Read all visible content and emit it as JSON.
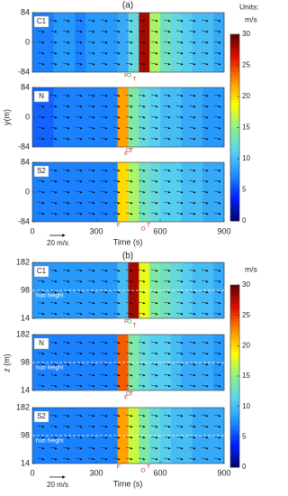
{
  "chart_data": [
    {
      "type": "heatmap",
      "title": "(a)",
      "xlabel": "Time (s)",
      "ylabel": "y(m)",
      "xlim": [
        0,
        900
      ],
      "xticks": [
        0,
        300,
        600,
        900
      ],
      "ylim": [
        -84,
        84
      ],
      "yticks": [
        84,
        0,
        -84
      ],
      "scale_label": "20 m/s",
      "colorbar": {
        "title": "Units:",
        "unit": "m/s",
        "lim": [
          0,
          30
        ],
        "ticks": [
          0,
          5,
          10,
          15,
          20,
          25,
          30
        ]
      },
      "colormap": [
        "#00006a",
        "#0020ff",
        "#1e90ff",
        "#5ad2f0",
        "#8cf08c",
        "#ffff00",
        "#ff9000",
        "#e01000",
        "#600000"
      ],
      "subplots": [
        {
          "name": "C1",
          "bins": [
            0,
            50,
            100,
            150,
            200,
            250,
            300,
            350,
            400,
            450,
            500,
            550,
            600,
            650,
            700,
            750,
            800,
            850,
            900
          ],
          "values": [
            7,
            7,
            8,
            8,
            7,
            8,
            8,
            8,
            9,
            12,
            28,
            16,
            13,
            12,
            11,
            10,
            10,
            9
          ],
          "annotations": [
            {
              "text": "O",
              "x": 455,
              "color": "#2a9d2a"
            },
            {
              "text": "T",
              "x": 480,
              "color": "#c03030"
            },
            {
              "text": "F",
              "x": 440,
              "color": "#c03030"
            }
          ]
        },
        {
          "name": "N",
          "bins": [
            0,
            50,
            100,
            150,
            200,
            250,
            300,
            350,
            400,
            450,
            500,
            550,
            600,
            650,
            700,
            750,
            800,
            850,
            900
          ],
          "values": [
            6,
            6,
            7,
            7,
            7,
            7,
            7,
            7,
            22,
            14,
            12,
            11,
            10,
            10,
            9,
            9,
            8,
            8
          ],
          "annotations": [
            {
              "text": "O",
              "x": 450,
              "color": "#c03030"
            },
            {
              "text": "F",
              "x": 440,
              "color": "#c03030"
            },
            {
              "text": "T",
              "x": 465,
              "color": "#c03030"
            }
          ]
        },
        {
          "name": "S2",
          "bins": [
            0,
            50,
            100,
            150,
            200,
            250,
            300,
            350,
            400,
            450,
            500,
            550,
            600,
            650,
            700,
            750,
            800,
            850,
            900
          ],
          "values": [
            7,
            7,
            7,
            7,
            7,
            7,
            7,
            7,
            20,
            16,
            13,
            12,
            11,
            11,
            10,
            10,
            9,
            9
          ],
          "annotations": [
            {
              "text": "F",
              "x": 405,
              "color": "#c03030"
            },
            {
              "text": "O",
              "x": 520,
              "color": "#c03030"
            },
            {
              "text": "T",
              "x": 545,
              "color": "#c03030"
            }
          ]
        }
      ]
    },
    {
      "type": "heatmap",
      "title": "(b)",
      "xlabel": "Time (s)",
      "ylabel": "z (m)",
      "xlim": [
        0,
        900
      ],
      "xticks": [
        0,
        300,
        600,
        900
      ],
      "ylim": [
        14,
        182
      ],
      "yticks": [
        182,
        98,
        14
      ],
      "scale_label": "20 m/s",
      "hub_height": 98,
      "hub_label": "hub height",
      "colorbar": {
        "unit": "m/s",
        "lim": [
          0,
          30
        ],
        "ticks": [
          0,
          5,
          10,
          15,
          20,
          25,
          30
        ]
      },
      "colormap": [
        "#00006a",
        "#0020ff",
        "#1e90ff",
        "#5ad2f0",
        "#8cf08c",
        "#ffff00",
        "#ff9000",
        "#e01000",
        "#600000"
      ],
      "subplots": [
        {
          "name": "C1",
          "bins": [
            0,
            50,
            100,
            150,
            200,
            250,
            300,
            350,
            400,
            450,
            500,
            550,
            600,
            650,
            700,
            750,
            800,
            850,
            900
          ],
          "values": [
            8,
            8,
            8,
            8,
            8,
            8,
            8,
            8,
            10,
            28,
            18,
            14,
            13,
            12,
            11,
            10,
            10,
            9
          ],
          "annotations": [
            {
              "text": "O",
              "x": 455,
              "color": "#2a9d2a"
            },
            {
              "text": "T",
              "x": 480,
              "color": "#c03030"
            },
            {
              "text": "F",
              "x": 440,
              "color": "#c03030"
            }
          ]
        },
        {
          "name": "N",
          "bins": [
            0,
            50,
            100,
            150,
            200,
            250,
            300,
            350,
            400,
            450,
            500,
            550,
            600,
            650,
            700,
            750,
            800,
            850,
            900
          ],
          "values": [
            7,
            7,
            7,
            7,
            7,
            7,
            7,
            7,
            24,
            14,
            12,
            11,
            11,
            10,
            9,
            9,
            9,
            8
          ],
          "annotations": [
            {
              "text": "O",
              "x": 450,
              "color": "#c03030"
            },
            {
              "text": "F",
              "x": 440,
              "color": "#c03030"
            },
            {
              "text": "T",
              "x": 465,
              "color": "#c03030"
            }
          ]
        },
        {
          "name": "S2",
          "bins": [
            0,
            50,
            100,
            150,
            200,
            250,
            300,
            350,
            400,
            450,
            500,
            550,
            600,
            650,
            700,
            750,
            800,
            850,
            900
          ],
          "values": [
            7,
            7,
            7,
            7,
            7,
            7,
            7,
            7,
            22,
            17,
            14,
            12,
            11,
            10,
            10,
            9,
            9,
            9
          ],
          "annotations": [
            {
              "text": "F",
              "x": 405,
              "color": "#c03030"
            },
            {
              "text": "O",
              "x": 520,
              "color": "#c03030"
            },
            {
              "text": "T",
              "x": 545,
              "color": "#c03030"
            }
          ]
        }
      ]
    }
  ]
}
